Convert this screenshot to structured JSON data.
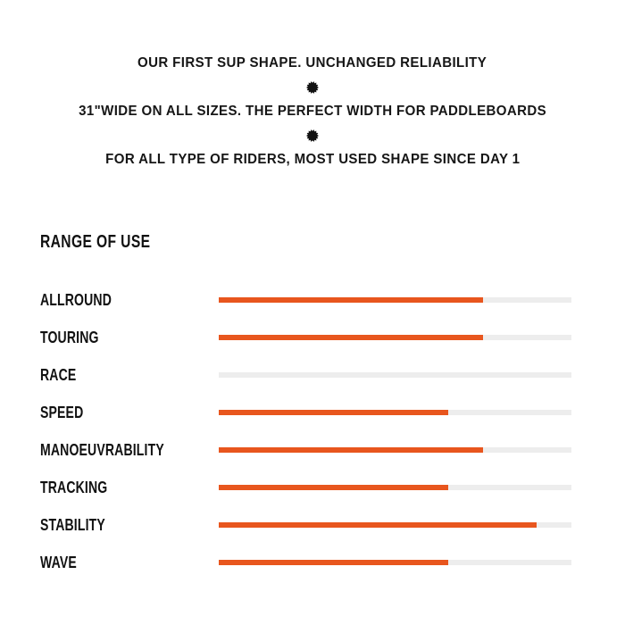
{
  "header": {
    "lines": [
      "OUR FIRST SUP SHAPE. UNCHANGED RELIABILITY",
      "31\"WIDE ON ALL SIZES. THE PERFECT WIDTH FOR PADDLEBOARDS",
      "FOR ALL TYPE OF RIDERS, MOST USED SHAPE SINCE DAY 1"
    ],
    "separator_icon": "burst-dot"
  },
  "section": {
    "title": "RANGE OF USE"
  },
  "chart_data": {
    "type": "bar",
    "orientation": "horizontal",
    "title": "RANGE OF USE",
    "categories": [
      "ALLROUND",
      "TOURING",
      "RACE",
      "SPEED",
      "MANOEUVRABILITY",
      "TRACKING",
      "STABILITY",
      "WAVE"
    ],
    "values_percent": [
      75,
      75,
      0,
      65,
      75,
      65,
      90,
      65
    ],
    "scale": {
      "min_percent": 0,
      "max_percent": 100
    },
    "grid": false,
    "legend": false,
    "value_labels_shown": false
  },
  "colors": {
    "bar_fill": "#E8561E",
    "bar_track": "#EDEDED",
    "text": "#161616",
    "background": "#FFFFFF"
  }
}
